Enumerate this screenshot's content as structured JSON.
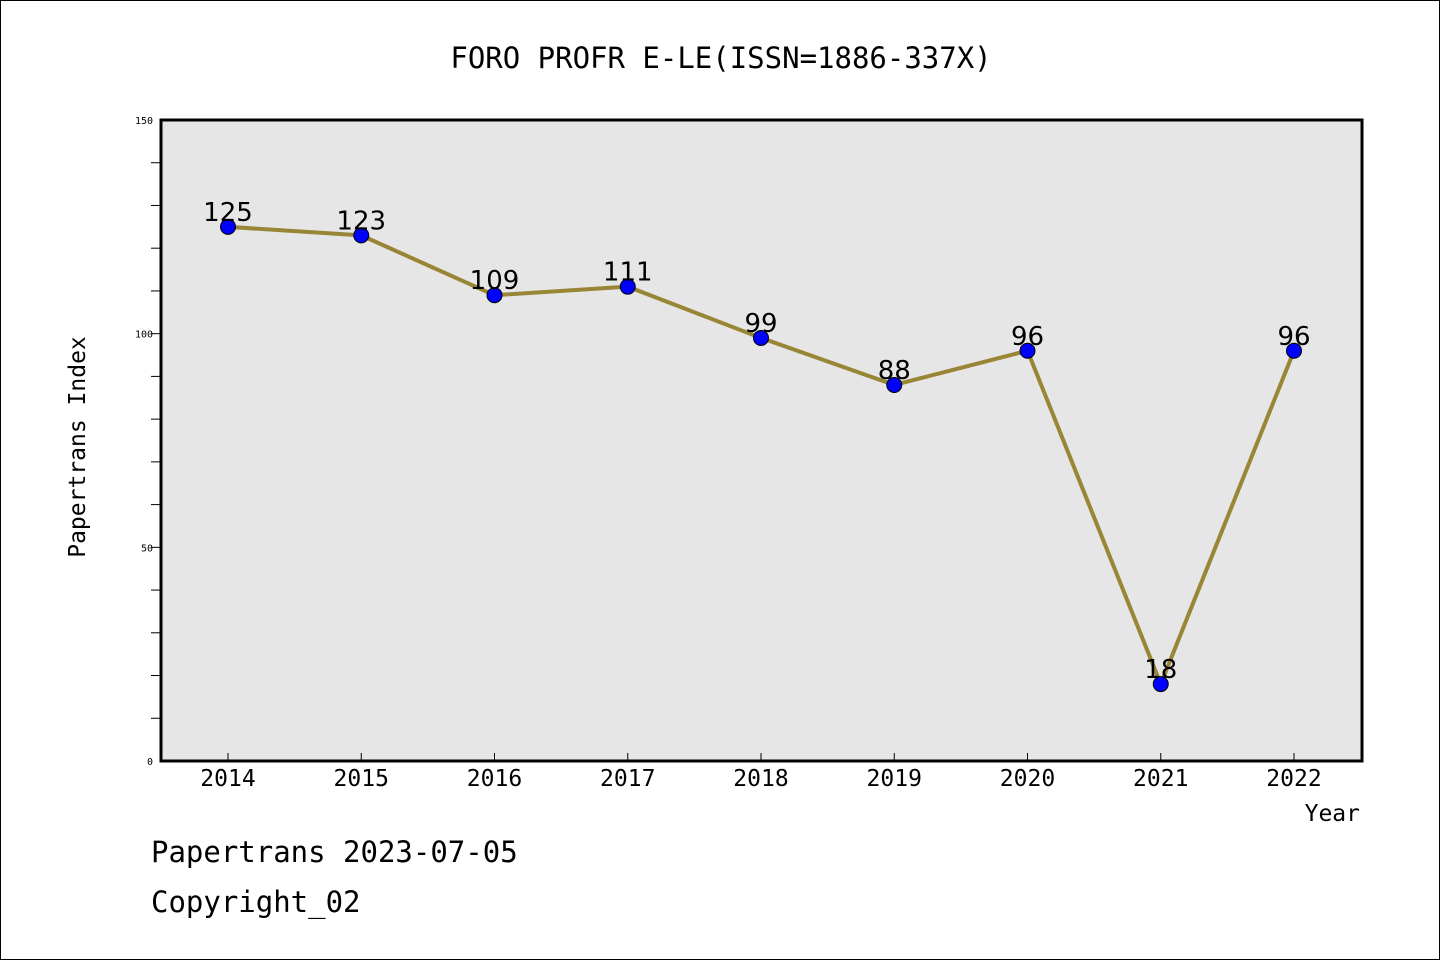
{
  "chart_data": {
    "type": "line",
    "title": "FORO PROFR E-LE(ISSN=1886-337X)",
    "xlabel": "Year",
    "ylabel": "Papertrans Index",
    "categories": [
      "2014",
      "2015",
      "2016",
      "2017",
      "2018",
      "2019",
      "2020",
      "2021",
      "2022"
    ],
    "series": [
      {
        "values": [
          125,
          123,
          109,
          111,
          99,
          88,
          96,
          18,
          96
        ]
      }
    ],
    "ylim": [
      0,
      150
    ],
    "yticks": [
      "0",
      "50",
      "100",
      "150"
    ],
    "grid": false,
    "line_color": "#988535",
    "marker_color": "#0000ff",
    "plot_background": "#e6e6e6"
  },
  "footer": {
    "line1": "Papertrans 2023-07-05",
    "line2": "Copyright_02"
  }
}
